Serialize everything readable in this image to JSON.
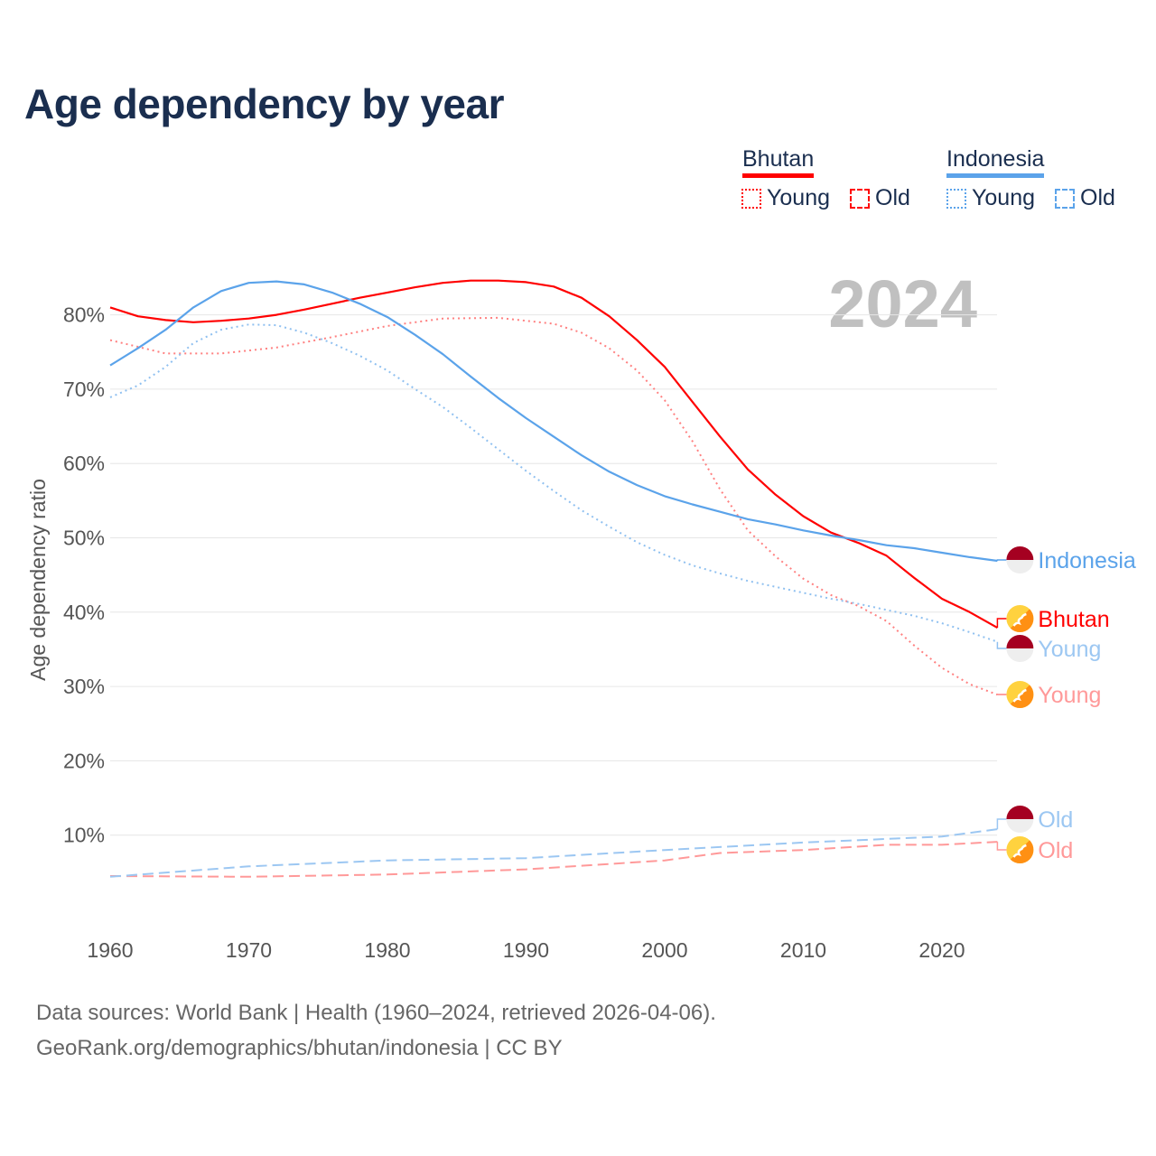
{
  "title": "Age dependency by year",
  "legend": {
    "groups": [
      {
        "country": "Bhutan",
        "color": "#ff0000",
        "young": "Young",
        "old": "Old"
      },
      {
        "country": "Indonesia",
        "color": "#5ba3ea",
        "young": "Young",
        "old": "Old"
      }
    ]
  },
  "year_watermark": "2024",
  "sources": {
    "line1": "Data sources: World Bank | Health (1960–2024, retrieved 2026-04-06).",
    "line2": "GeoRank.org/demographics/bhutan/indonesia | CC BY"
  },
  "chart_data": {
    "type": "line",
    "title": "Age dependency by year",
    "xlabel": "",
    "ylabel": "Age dependency ratio",
    "xlim": [
      1960,
      2024
    ],
    "ylim": [
      0,
      85
    ],
    "x_ticks": [
      "1960",
      "1970",
      "1980",
      "1990",
      "2000",
      "2010",
      "2020"
    ],
    "y_ticks": [
      "10%",
      "20%",
      "30%",
      "40%",
      "50%",
      "60%",
      "70%",
      "80%"
    ],
    "grid": true,
    "legend_position": "top-right",
    "series": [
      {
        "name": "Bhutan",
        "label": "Bhutan",
        "kind": "total",
        "color": "#ff0000",
        "label_color": "#ff0000",
        "flag": "bhutan",
        "years": [
          1960,
          1962,
          1964,
          1966,
          1968,
          1970,
          1972,
          1974,
          1976,
          1978,
          1980,
          1982,
          1984,
          1986,
          1988,
          1990,
          1992,
          1994,
          1996,
          1998,
          2000,
          2002,
          2004,
          2006,
          2008,
          2010,
          2012,
          2014,
          2016,
          2018,
          2020,
          2022,
          2024
        ],
        "values": [
          81,
          79.8,
          79.3,
          79,
          79.2,
          79.5,
          80,
          80.7,
          81.5,
          82.3,
          83,
          83.7,
          84.3,
          84.6,
          84.6,
          84.4,
          83.8,
          82.3,
          79.8,
          76.6,
          73,
          68.3,
          63.6,
          59.2,
          55.8,
          52.9,
          50.7,
          49.3,
          47.6,
          44.6,
          41.8,
          40,
          37.9
        ]
      },
      {
        "name": "Bhutan Young",
        "label": "Young",
        "kind": "young",
        "color": "#ff8080",
        "label_color": "#ff9999",
        "flag": "bhutan",
        "years": [
          1960,
          1964,
          1968,
          1972,
          1976,
          1980,
          1984,
          1988,
          1992,
          1994,
          1996,
          1998,
          2000,
          2002,
          2004,
          2006,
          2008,
          2010,
          2012,
          2014,
          2016,
          2018,
          2020,
          2022,
          2024
        ],
        "values": [
          76.6,
          74.8,
          74.8,
          75.6,
          77,
          78.5,
          79.5,
          79.6,
          78.8,
          77.6,
          75.5,
          72.5,
          68.5,
          63,
          56.5,
          51,
          47.5,
          44.5,
          42.3,
          40.8,
          38.8,
          35.5,
          32.5,
          30.3,
          28.9
        ]
      },
      {
        "name": "Bhutan Old",
        "label": "Old",
        "kind": "old",
        "color": "#ff9999",
        "label_color": "#ff9999",
        "flag": "bhutan",
        "years": [
          1960,
          1970,
          1980,
          1990,
          2000,
          2004,
          2010,
          2016,
          2020,
          2024
        ],
        "values": [
          4.5,
          4.4,
          4.7,
          5.4,
          6.6,
          7.6,
          8,
          8.7,
          8.7,
          9.1
        ]
      },
      {
        "name": "Indonesia",
        "label": "Indonesia",
        "kind": "total",
        "color": "#5ba3ea",
        "label_color": "#5ba3ea",
        "flag": "indonesia",
        "years": [
          1960,
          1962,
          1964,
          1966,
          1968,
          1970,
          1972,
          1974,
          1976,
          1978,
          1980,
          1982,
          1984,
          1986,
          1988,
          1990,
          1992,
          1994,
          1996,
          1998,
          2000,
          2002,
          2004,
          2006,
          2008,
          2010,
          2012,
          2014,
          2016,
          2018,
          2020,
          2022,
          2024
        ],
        "values": [
          73.2,
          75.5,
          78,
          81,
          83.2,
          84.3,
          84.5,
          84.1,
          83,
          81.5,
          79.7,
          77.3,
          74.7,
          71.7,
          68.8,
          66.1,
          63.6,
          61.1,
          58.9,
          57.1,
          55.6,
          54.5,
          53.5,
          52.5,
          51.8,
          51,
          50.3,
          49.7,
          49,
          48.6,
          48,
          47.4,
          46.9
        ]
      },
      {
        "name": "Indonesia Young",
        "label": "Young",
        "kind": "young",
        "color": "#8fc0f0",
        "label_color": "#9cc7f2",
        "flag": "indonesia",
        "years": [
          1960,
          1962,
          1964,
          1966,
          1968,
          1970,
          1972,
          1974,
          1976,
          1978,
          1980,
          1982,
          1984,
          1986,
          1988,
          1990,
          1992,
          1994,
          1996,
          1998,
          2000,
          2002,
          2004,
          2006,
          2008,
          2010,
          2012,
          2014,
          2016,
          2018,
          2020,
          2022,
          2024
        ],
        "values": [
          68.9,
          70.5,
          73,
          76.2,
          78,
          78.7,
          78.6,
          77.6,
          76.2,
          74.5,
          72.5,
          70,
          67.6,
          64.8,
          61.9,
          59,
          56.3,
          53.7,
          51.5,
          49.4,
          47.7,
          46.3,
          45.2,
          44.2,
          43.4,
          42.6,
          41.8,
          41.1,
          40.3,
          39.5,
          38.5,
          37.3,
          36
        ]
      },
      {
        "name": "Indonesia Old",
        "label": "Old",
        "kind": "old",
        "color": "#9cc7f2",
        "label_color": "#9cc7f2",
        "flag": "indonesia",
        "years": [
          1960,
          1970,
          1980,
          1990,
          2000,
          2010,
          2020,
          2024
        ],
        "values": [
          4.4,
          5.8,
          6.6,
          6.9,
          8,
          9,
          9.8,
          10.8
        ]
      }
    ]
  }
}
